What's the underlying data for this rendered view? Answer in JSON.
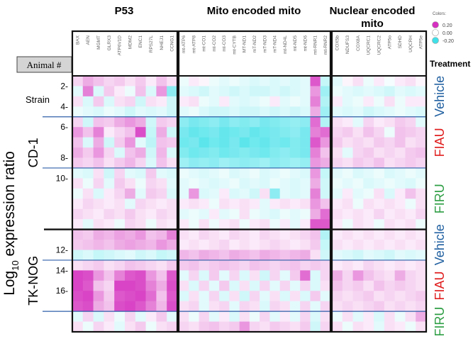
{
  "chart_data": {
    "type": "heatmap",
    "groups": [
      {
        "title": "P53",
        "genes": [
          "BAX",
          "AEN",
          "MGMT",
          "GLRX3",
          "ATP6V1D",
          "MDM2",
          "ENC1",
          "RPS27L",
          "NHEJ1",
          "CCNG1"
        ]
      },
      {
        "title": "Mito encoded mito",
        "genes": [
          "mt-ATP6",
          "mt-ATP8",
          "mt-CO1",
          "mt-CO2",
          "mt-CO3",
          "mt-CYTB",
          "MT-ND1",
          "mT-ND2",
          "mT-ND3",
          "mT-ND4",
          "mt-ND4L",
          "mt-ND5",
          "mt-ND6",
          "mt-RNR1",
          "mt-RNR2"
        ]
      },
      {
        "title": "Nuclear encoded mito",
        "genes": [
          "COX5b",
          "NDUFS3",
          "COX8A",
          "UQCRC1",
          "UQCRC2",
          "ATP5o",
          "SDHD",
          "UQCRH",
          "ATP5e"
        ]
      }
    ],
    "y_axis_label": "Log",
    "y_axis_label_sub": "10",
    "y_axis_label_rest": " expression ratio",
    "animal_header": "Animal #",
    "strain_label": "Strain",
    "strains": [
      {
        "name": "CD-1",
        "rows": [
          0,
          15
        ]
      },
      {
        "name": "TK-NOG",
        "rows": [
          15,
          25
        ]
      }
    ],
    "animal_ticks": [
      {
        "label": "2-",
        "row": 1
      },
      {
        "label": "4-",
        "row": 3
      },
      {
        "label": "6-",
        "row": 5
      },
      {
        "label": "8-",
        "row": 8
      },
      {
        "label": "10-",
        "row": 10
      },
      {
        "label": "12-",
        "row": 17
      },
      {
        "label": "14-",
        "row": 19
      },
      {
        "label": "16-",
        "row": 21
      }
    ],
    "treatment_label": "Treatment",
    "treatments": [
      {
        "name": "Vehicle",
        "rows": [
          0,
          4
        ],
        "color": "#1f5fa0"
      },
      {
        "name": "FIAU",
        "rows": [
          4,
          9
        ],
        "color": "#e02020"
      },
      {
        "name": "FIRU",
        "rows": [
          9,
          15
        ],
        "color": "#2e9e44"
      },
      {
        "name": "Vehicle",
        "rows": [
          15,
          18
        ],
        "color": "#1f5fa0"
      },
      {
        "name": "FIAU",
        "rows": [
          18,
          23
        ],
        "color": "#e02020"
      },
      {
        "name": "FIRU",
        "rows": [
          23,
          25
        ],
        "color": "#2e9e44"
      }
    ],
    "blue_separator_rows": [
      4,
      9,
      18,
      23
    ],
    "colorscale": {
      "title": "Colors:",
      "min": -0.2,
      "mid": 0.0,
      "max": 0.2,
      "labels": [
        "0.20",
        "0.00",
        "-0.20"
      ],
      "low_color": "#3fe0e8",
      "mid_color": "#ffffff",
      "high_color": "#d42fbe"
    },
    "row_count": 25,
    "values": [
      [
        0.04,
        0.08,
        0.06,
        0.04,
        0.05,
        0.03,
        0.05,
        0.02,
        0.06,
        0.03,
        -0.02,
        0.02,
        0.01,
        -0.02,
        -0.03,
        -0.02,
        -0.03,
        -0.04,
        -0.03,
        -0.04,
        -0.03,
        -0.04,
        -0.03,
        0.16,
        -0.06,
        -0.03,
        0.01,
        0.03,
        -0.02,
        0.02,
        -0.01,
        0.02,
        0.03,
        0.01
      ],
      [
        -0.03,
        0.12,
        -0.04,
        0.05,
        0.02,
        -0.02,
        0.06,
        -0.04,
        0.1,
        -0.12,
        -0.03,
        -0.04,
        -0.05,
        -0.03,
        -0.04,
        -0.05,
        -0.04,
        -0.05,
        -0.05,
        -0.04,
        -0.05,
        -0.04,
        -0.03,
        0.1,
        -0.1,
        -0.02,
        -0.03,
        -0.04,
        -0.03,
        -0.04,
        -0.05,
        -0.03,
        -0.04,
        -0.03
      ],
      [
        0.03,
        -0.04,
        0.05,
        -0.04,
        0.03,
        0.04,
        -0.05,
        0.03,
        0.02,
        -0.05,
        0.02,
        0.03,
        -0.02,
        -0.03,
        0.02,
        -0.03,
        -0.04,
        -0.03,
        -0.02,
        0.02,
        -0.03,
        -0.02,
        -0.03,
        0.12,
        -0.08,
        0.02,
        -0.03,
        -0.02,
        0.02,
        -0.02,
        0.03,
        -0.02,
        0.02,
        0.02
      ],
      [
        -0.02,
        -0.03,
        -0.04,
        -0.02,
        -0.03,
        -0.05,
        -0.03,
        -0.04,
        -0.03,
        -0.05,
        -0.03,
        -0.02,
        -0.04,
        -0.05,
        -0.05,
        -0.04,
        -0.05,
        -0.05,
        -0.04,
        -0.05,
        -0.04,
        -0.05,
        -0.04,
        0.08,
        -0.1,
        -0.03,
        -0.04,
        -0.03,
        -0.05,
        -0.04,
        -0.03,
        -0.02,
        -0.03,
        -0.04
      ],
      [
        0.04,
        -0.05,
        0.06,
        0.05,
        0.08,
        0.1,
        0.08,
        -0.05,
        0.05,
        0.04,
        -0.12,
        -0.14,
        -0.13,
        -0.12,
        -0.14,
        -0.12,
        -0.13,
        -0.12,
        -0.14,
        -0.13,
        -0.12,
        -0.11,
        -0.12,
        0.14,
        -0.08,
        0.03,
        0.02,
        -0.03,
        0.04,
        0.02,
        0.03,
        0.05,
        0.04,
        -0.03
      ],
      [
        0.1,
        0.06,
        0.12,
        0.02,
        0.04,
        0.06,
        0.17,
        -0.06,
        0.08,
        -0.05,
        -0.14,
        -0.16,
        -0.15,
        -0.14,
        -0.16,
        -0.15,
        -0.14,
        -0.16,
        -0.15,
        -0.14,
        -0.13,
        -0.12,
        -0.14,
        0.12,
        0.14,
        0.04,
        0.05,
        0.03,
        0.06,
        0.04,
        -0.02,
        0.06,
        0.05,
        0.04
      ],
      [
        0.06,
        -0.04,
        0.08,
        -0.05,
        0.05,
        0.1,
        -0.03,
        -0.07,
        0.06,
        0.05,
        -0.15,
        -0.14,
        -0.17,
        -0.15,
        -0.16,
        -0.14,
        -0.17,
        -0.15,
        -0.16,
        -0.14,
        -0.15,
        -0.13,
        -0.14,
        0.16,
        0.1,
        0.05,
        0.03,
        0.04,
        0.03,
        0.05,
        0.04,
        0.06,
        0.03,
        0.04
      ],
      [
        0.08,
        0.05,
        0.1,
        0.04,
        -0.04,
        0.06,
        0.08,
        -0.05,
        0.07,
        -0.04,
        -0.13,
        -0.15,
        -0.14,
        -0.13,
        -0.15,
        -0.14,
        -0.13,
        -0.14,
        -0.15,
        -0.13,
        -0.12,
        -0.13,
        -0.14,
        0.12,
        0.06,
        0.03,
        -0.03,
        0.04,
        0.05,
        0.03,
        0.04,
        0.03,
        0.05,
        0.06
      ],
      [
        0.05,
        0.04,
        0.06,
        0.03,
        0.05,
        0.07,
        0.04,
        -0.04,
        0.06,
        0.03,
        -0.1,
        -0.12,
        -0.11,
        -0.12,
        -0.1,
        -0.11,
        -0.12,
        -0.11,
        -0.1,
        -0.12,
        -0.11,
        -0.1,
        -0.11,
        0.1,
        0.08,
        0.04,
        0.03,
        0.05,
        0.04,
        0.06,
        0.03,
        0.04,
        0.05,
        0.04
      ],
      [
        -0.03,
        -0.04,
        0.03,
        -0.05,
        0.04,
        -0.03,
        -0.04,
        0.05,
        -0.03,
        -0.04,
        -0.02,
        -0.03,
        -0.04,
        -0.03,
        -0.02,
        -0.04,
        -0.03,
        -0.02,
        -0.04,
        -0.03,
        -0.02,
        -0.03,
        -0.04,
        0.1,
        -0.06,
        -0.03,
        -0.02,
        -0.04,
        -0.03,
        -0.02,
        -0.04,
        -0.03,
        -0.02,
        -0.03
      ],
      [
        0.03,
        -0.02,
        0.04,
        -0.03,
        0.05,
        0.03,
        -0.02,
        0.04,
        0.03,
        -0.03,
        -0.03,
        -0.02,
        -0.03,
        -0.04,
        -0.03,
        -0.02,
        -0.04,
        -0.03,
        -0.04,
        -0.02,
        -0.03,
        -0.04,
        -0.03,
        0.08,
        -0.05,
        -0.02,
        -0.03,
        -0.02,
        -0.04,
        -0.03,
        -0.02,
        -0.03,
        -0.04,
        -0.02
      ],
      [
        -0.02,
        0.03,
        -0.04,
        0.02,
        0.04,
        0.08,
        -0.03,
        0.05,
        0.04,
        -0.04,
        -0.03,
        0.1,
        -0.04,
        -0.03,
        0.02,
        -0.04,
        -0.03,
        -0.05,
        0.03,
        -0.12,
        -0.03,
        -0.04,
        -0.03,
        0.12,
        -0.05,
        -0.03,
        0.02,
        -0.03,
        -0.02,
        0.03,
        -0.04,
        0.02,
        0.06,
        0.03
      ],
      [
        0.02,
        0.04,
        0.03,
        0.02,
        0.03,
        -0.03,
        0.04,
        0.03,
        0.02,
        0.03,
        0.02,
        0.03,
        0.02,
        -0.02,
        0.03,
        0.02,
        0.03,
        0.02,
        -0.03,
        0.02,
        0.03,
        0.02,
        0.03,
        0.1,
        0.06,
        0.02,
        0.03,
        -0.02,
        0.03,
        0.02,
        0.03,
        0.02,
        -0.02,
        0.03
      ],
      [
        0.04,
        0.03,
        0.02,
        0.04,
        0.03,
        0.05,
        0.03,
        0.02,
        0.04,
        0.03,
        -0.03,
        -0.02,
        -0.03,
        0.02,
        -0.03,
        -0.02,
        0.03,
        -0.02,
        -0.03,
        -0.04,
        -0.02,
        -0.03,
        -0.02,
        0.08,
        0.14,
        0.03,
        0.02,
        0.03,
        0.02,
        0.04,
        0.02,
        0.03,
        0.02,
        0.04
      ],
      [
        0.02,
        -0.03,
        0.03,
        0.02,
        -0.02,
        0.04,
        0.03,
        -0.02,
        0.03,
        0.02,
        0.02,
        -0.02,
        0.03,
        -0.02,
        0.02,
        0.03,
        -0.02,
        0.02,
        0.03,
        -0.02,
        0.02,
        -0.03,
        0.02,
        0.16,
        0.16,
        0.02,
        -0.02,
        0.03,
        0.02,
        -0.02,
        0.03,
        0.02,
        0.03,
        -0.02
      ],
      [
        0.06,
        0.05,
        0.08,
        0.07,
        0.09,
        0.08,
        0.1,
        0.06,
        0.07,
        0.12,
        0.03,
        0.02,
        0.04,
        0.03,
        0.02,
        0.04,
        0.03,
        0.02,
        0.04,
        0.03,
        0.02,
        0.03,
        0.04,
        0.06,
        -0.08,
        0.02,
        0.03,
        0.02,
        0.03,
        0.02,
        0.03,
        0.02,
        0.03,
        0.02
      ],
      [
        0.05,
        0.06,
        0.07,
        0.06,
        0.08,
        0.09,
        0.08,
        0.07,
        0.1,
        0.08,
        0.02,
        0.03,
        0.02,
        0.03,
        0.04,
        0.02,
        0.03,
        0.02,
        0.03,
        0.04,
        0.03,
        0.02,
        0.03,
        0.05,
        -0.06,
        0.03,
        0.02,
        0.03,
        0.02,
        0.03,
        0.02,
        0.03,
        0.02,
        0.03
      ],
      [
        -0.05,
        -0.04,
        -0.06,
        -0.05,
        -0.04,
        -0.03,
        -0.05,
        -0.04,
        -0.06,
        -0.05,
        0.07,
        0.06,
        0.08,
        0.07,
        0.06,
        0.08,
        0.07,
        0.06,
        0.08,
        0.07,
        0.06,
        0.07,
        0.08,
        0.03,
        -0.05,
        -0.03,
        -0.04,
        -0.05,
        -0.03,
        -0.04,
        -0.05,
        -0.03,
        -0.04,
        -0.03
      ],
      [
        0.03,
        0.04,
        0.05,
        0.03,
        0.04,
        0.06,
        0.05,
        0.04,
        0.03,
        0.05,
        0.05,
        0.06,
        0.04,
        0.05,
        0.06,
        0.05,
        0.04,
        0.06,
        0.05,
        0.04,
        0.05,
        0.06,
        0.04,
        0.05,
        0.04,
        0.02,
        0.03,
        0.02,
        0.04,
        0.03,
        0.02,
        0.03,
        0.02,
        0.03
      ],
      [
        0.18,
        0.17,
        0.1,
        0.06,
        0.12,
        0.16,
        0.17,
        0.1,
        0.06,
        0.16,
        -0.03,
        0.04,
        -0.04,
        0.05,
        -0.03,
        0.04,
        -0.04,
        0.03,
        -0.05,
        0.04,
        -0.03,
        0.05,
        0.14,
        -0.04,
        0.04,
        0.08,
        0.04,
        0.1,
        0.06,
        0.04,
        0.03,
        0.08,
        0.04,
        0.03
      ],
      [
        0.18,
        0.16,
        0.06,
        0.04,
        0.18,
        0.18,
        0.17,
        0.12,
        0.08,
        0.17,
        0.03,
        -0.04,
        0.04,
        -0.03,
        0.05,
        -0.04,
        0.03,
        -0.04,
        0.04,
        -0.03,
        0.04,
        -0.03,
        0.04,
        -0.04,
        0.03,
        0.06,
        0.04,
        0.05,
        0.03,
        0.06,
        0.04,
        0.05,
        0.04,
        0.03
      ],
      [
        0.17,
        0.18,
        0.1,
        0.05,
        0.16,
        0.17,
        0.18,
        0.14,
        0.06,
        0.16,
        -0.04,
        0.03,
        -0.03,
        0.04,
        -0.04,
        0.03,
        -0.05,
        0.04,
        -0.03,
        0.03,
        -0.04,
        0.03,
        -0.04,
        0.05,
        -0.03,
        0.04,
        0.03,
        0.04,
        0.05,
        0.03,
        0.04,
        0.03,
        0.04,
        0.05
      ],
      [
        0.16,
        0.17,
        0.08,
        0.06,
        0.17,
        0.18,
        0.16,
        0.12,
        0.07,
        0.17,
        0.03,
        0.04,
        -0.03,
        0.03,
        0.04,
        -0.03,
        0.04,
        0.03,
        -0.04,
        0.04,
        0.03,
        -0.03,
        0.04,
        -0.03,
        0.04,
        0.03,
        0.04,
        0.03,
        0.04,
        0.05,
        0.03,
        0.04,
        0.03,
        0.04
      ],
      [
        -0.03,
        0.04,
        -0.04,
        0.03,
        -0.02,
        0.04,
        -0.03,
        0.02,
        0.05,
        -0.03,
        0.03,
        -0.02,
        0.04,
        -0.03,
        0.02,
        -0.04,
        0.03,
        -0.02,
        0.04,
        -0.03,
        0.02,
        -0.03,
        0.04,
        -0.04,
        0.03,
        -0.02,
        0.03,
        -0.03,
        0.02,
        -0.04,
        0.03,
        -0.02,
        0.03,
        0.08
      ],
      [
        0.03,
        -0.02,
        0.04,
        0.02,
        -0.03,
        0.03,
        0.05,
        -0.02,
        0.03,
        0.04,
        0.04,
        0.03,
        0.05,
        0.06,
        0.04,
        0.05,
        0.1,
        0.04,
        0.03,
        0.05,
        0.04,
        0.03,
        0.05,
        -0.05,
        0.04,
        0.03,
        -0.02,
        0.03,
        0.02,
        -0.03,
        0.03,
        0.02,
        -0.02,
        0.03
      ]
    ]
  }
}
